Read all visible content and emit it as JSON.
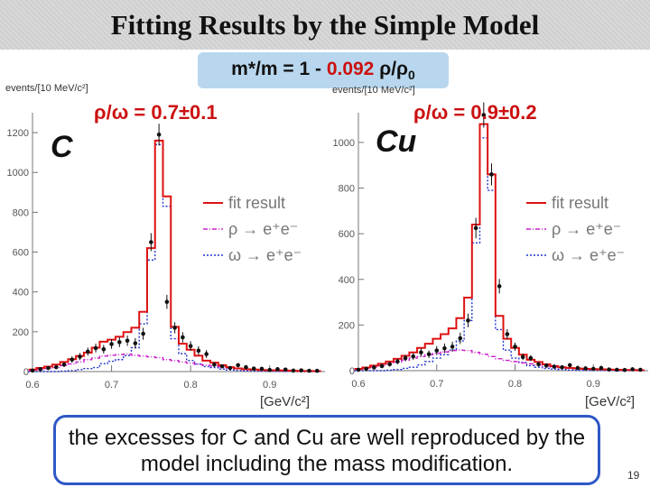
{
  "slide": {
    "title": "Fitting Results by the Simple Model",
    "formula_prefix": "m*/m = 1 - ",
    "formula_coeff": "0.092",
    "formula_suffix": " ρ/ρ",
    "formula_sub": "0",
    "conclusion": "the excesses for C and Cu are well reproduced by the model including the mass modification.",
    "page_number": "19"
  },
  "colors": {
    "fit": "#dd1111",
    "rho": "#cc22cc",
    "omega": "#2233cc",
    "data": "#111111",
    "accent": "#cc1010"
  },
  "chart_data": [
    {
      "type": "line",
      "nucleus": "C",
      "ratio_label": "ρ/ω = 0.7±0.1",
      "ylabel": "events/[10 MeV/c²]",
      "xlabel": "[GeV/c²]",
      "xlim": [
        0.6,
        0.97
      ],
      "ylim": [
        0,
        1300
      ],
      "yticks": [
        0,
        200,
        400,
        600,
        800,
        1000,
        1200
      ],
      "xticks": [
        0.6,
        0.7,
        0.8,
        0.9
      ],
      "legend": [
        "fit result",
        "ρ → e⁺e⁻",
        "ω → e⁺e⁻"
      ],
      "x": [
        0.6,
        0.61,
        0.62,
        0.63,
        0.64,
        0.65,
        0.66,
        0.67,
        0.68,
        0.69,
        0.7,
        0.71,
        0.72,
        0.73,
        0.74,
        0.75,
        0.76,
        0.77,
        0.78,
        0.79,
        0.8,
        0.81,
        0.82,
        0.83,
        0.84,
        0.85,
        0.86,
        0.87,
        0.88,
        0.89,
        0.9,
        0.91,
        0.92,
        0.93,
        0.94,
        0.95,
        0.96
      ],
      "series": [
        {
          "name": "data",
          "values": [
            5,
            12,
            18,
            22,
            35,
            60,
            75,
            100,
            118,
            112,
            138,
            148,
            155,
            142,
            190,
            650,
            1190,
            350,
            220,
            172,
            128,
            105,
            88,
            35,
            26,
            18,
            32,
            22,
            15,
            14,
            8,
            12,
            10,
            5,
            6,
            4,
            4
          ]
        },
        {
          "name": "fit result",
          "values": [
            10,
            18,
            25,
            35,
            48,
            62,
            78,
            95,
            120,
            150,
            160,
            175,
            198,
            220,
            300,
            620,
            1160,
            880,
            225,
            140,
            110,
            80,
            55,
            45,
            32,
            22,
            16,
            12,
            10,
            8,
            7,
            6,
            5,
            4,
            3,
            3,
            2
          ]
        },
        {
          "name": "rho",
          "values": [
            5,
            10,
            15,
            20,
            30,
            38,
            48,
            60,
            68,
            78,
            82,
            85,
            88,
            82,
            78,
            74,
            70,
            60,
            55,
            48,
            42,
            36,
            32,
            28,
            24,
            18,
            15,
            12,
            10,
            8,
            7,
            6,
            5,
            4,
            3,
            3,
            2
          ]
        },
        {
          "name": "omega",
          "values": [
            0,
            0,
            0,
            0,
            2,
            5,
            10,
            15,
            20,
            40,
            52,
            60,
            80,
            120,
            240,
            560,
            1140,
            830,
            165,
            90,
            55,
            38,
            25,
            20,
            12,
            8,
            6,
            4,
            3,
            2,
            2,
            1,
            1,
            1,
            0,
            0,
            0
          ]
        }
      ],
      "errors": [
        4,
        6,
        8,
        10,
        12,
        16,
        18,
        20,
        22,
        22,
        24,
        25,
        26,
        26,
        30,
        45,
        55,
        35,
        28,
        26,
        24,
        22,
        20,
        12,
        10,
        8,
        10,
        8,
        6,
        6,
        5,
        5,
        5,
        4,
        4,
        3,
        3
      ]
    },
    {
      "type": "line",
      "nucleus": "Cu",
      "ratio_label": "ρ/ω = 0.9±0.2",
      "ylabel": "events/[10 MeV/c²]",
      "xlabel": "[GeV/c²]",
      "xlim": [
        0.6,
        0.97
      ],
      "ylim": [
        0,
        1130
      ],
      "yticks": [
        0,
        200,
        400,
        600,
        800,
        1000
      ],
      "xticks": [
        0.6,
        0.7,
        0.8,
        0.9
      ],
      "legend": [
        "fit result",
        "ρ → e⁺e⁻",
        "ω → e⁺e⁻"
      ],
      "x": [
        0.6,
        0.61,
        0.62,
        0.63,
        0.64,
        0.65,
        0.66,
        0.67,
        0.68,
        0.69,
        0.7,
        0.71,
        0.72,
        0.73,
        0.74,
        0.75,
        0.76,
        0.77,
        0.78,
        0.79,
        0.8,
        0.81,
        0.82,
        0.83,
        0.84,
        0.85,
        0.86,
        0.87,
        0.88,
        0.89,
        0.9,
        0.91,
        0.92,
        0.93,
        0.94,
        0.95,
        0.96
      ],
      "series": [
        {
          "name": "data",
          "values": [
            4,
            8,
            14,
            20,
            28,
            40,
            55,
            62,
            80,
            72,
            88,
            98,
            105,
            142,
            220,
            625,
            1120,
            860,
            370,
            160,
            105,
            60,
            55,
            28,
            22,
            18,
            15,
            24,
            12,
            10,
            8,
            12,
            5,
            4,
            3,
            6,
            4
          ]
        },
        {
          "name": "fit result",
          "values": [
            8,
            14,
            22,
            30,
            40,
            52,
            65,
            80,
            100,
            118,
            140,
            160,
            185,
            230,
            320,
            640,
            1080,
            860,
            240,
            140,
            100,
            70,
            48,
            38,
            28,
            20,
            15,
            12,
            10,
            8,
            7,
            6,
            5,
            4,
            3,
            3,
            2
          ]
        },
        {
          "name": "rho",
          "values": [
            5,
            10,
            16,
            22,
            30,
            38,
            46,
            55,
            62,
            70,
            76,
            82,
            88,
            90,
            88,
            80,
            72,
            62,
            52,
            45,
            40,
            34,
            30,
            25,
            20,
            16,
            13,
            11,
            9,
            8,
            7,
            6,
            5,
            4,
            3,
            3,
            2
          ]
        },
        {
          "name": "omega",
          "values": [
            0,
            0,
            0,
            0,
            2,
            5,
            10,
            15,
            25,
            40,
            55,
            70,
            90,
            130,
            220,
            560,
            1020,
            790,
            180,
            90,
            55,
            36,
            22,
            15,
            10,
            7,
            5,
            3,
            2,
            2,
            1,
            1,
            1,
            0,
            0,
            0,
            0
          ]
        }
      ],
      "errors": [
        4,
        5,
        7,
        8,
        10,
        12,
        14,
        15,
        18,
        17,
        20,
        21,
        22,
        25,
        30,
        45,
        55,
        48,
        32,
        22,
        18,
        14,
        13,
        10,
        9,
        8,
        8,
        9,
        6,
        6,
        5,
        6,
        4,
        4,
        3,
        4,
        3
      ]
    }
  ]
}
